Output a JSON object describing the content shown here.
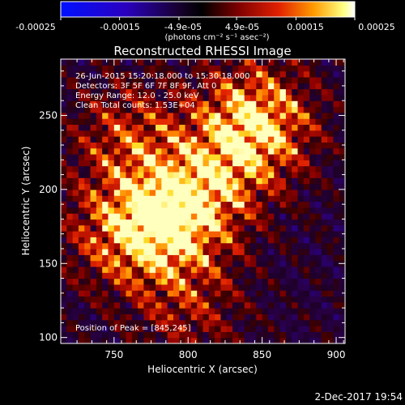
{
  "colorbar": {
    "ticks": [
      "-0.00025",
      "-0.00015",
      "-4.9e-05",
      "4.9e-05",
      "0.00015",
      "0.00025"
    ],
    "unit_text": "(photons cm⁻² s⁻¹ asec⁻²)",
    "range": [
      -0.00025,
      0.00025
    ]
  },
  "chart_data": {
    "type": "heatmap",
    "title": "Reconstructed RHESSI Image",
    "xlabel": "Heliocentric X (arcsec)",
    "ylabel": "Heliocentric Y (arcsec)",
    "xlim": [
      714,
      906
    ],
    "ylim": [
      96,
      288
    ],
    "xticks": [
      750,
      800,
      850,
      900
    ],
    "yticks": [
      100,
      150,
      200,
      250
    ],
    "annotations": [
      "26-Jun-2015 15:20:18.000 to 15:30:18.000",
      "Detectors: 3F 5F 6F 7F 8F 9F, Att 0",
      "Energy Range: 12.0 - 25.0 keV",
      "Clean    Total counts: 1.53E+04"
    ],
    "peak_label": "Position of Peak = [845,245]",
    "peak": [
      845,
      245
    ],
    "sources": [
      {
        "x": 785,
        "y": 178,
        "amp": 1.0
      },
      {
        "x": 845,
        "y": 245,
        "amp": 1.0
      },
      {
        "x": 815,
        "y": 205,
        "amp": 0.55
      },
      {
        "x": 760,
        "y": 235,
        "amp": 0.5
      },
      {
        "x": 750,
        "y": 170,
        "amp": 0.45
      },
      {
        "x": 800,
        "y": 120,
        "amp": 0.35
      }
    ]
  },
  "footer": {
    "timestamp": "2-Dec-2017 19:54"
  }
}
